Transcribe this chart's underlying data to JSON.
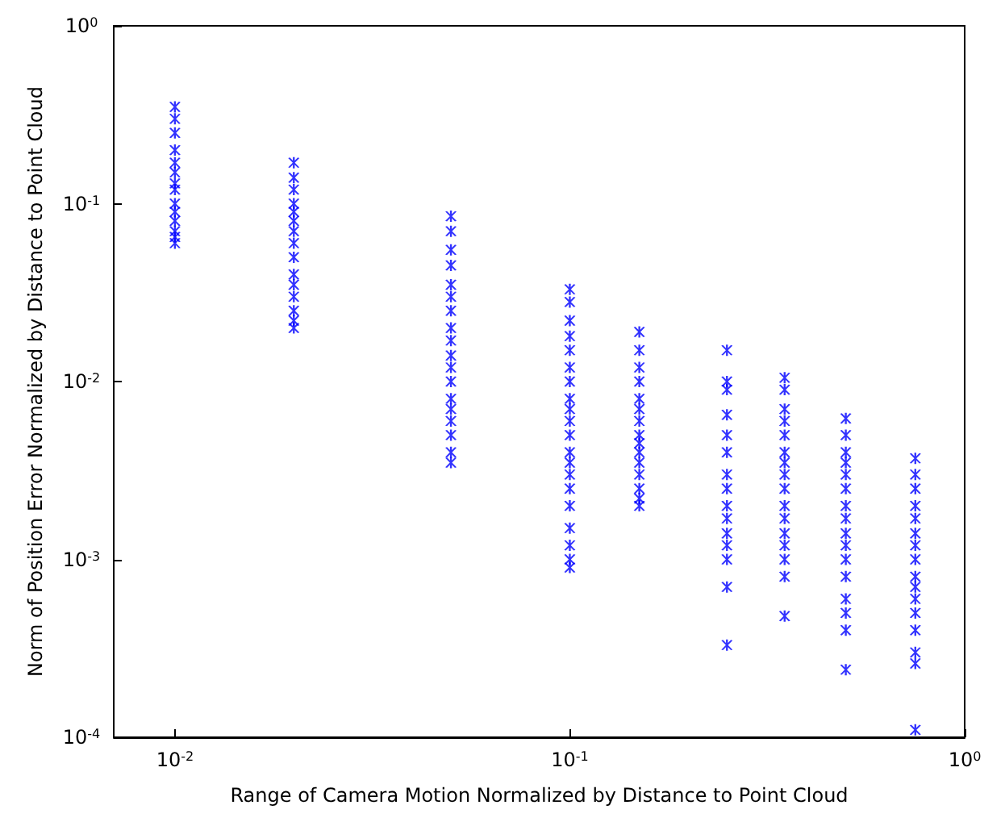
{
  "chart_data": {
    "type": "scatter",
    "xlabel": "Range of Camera Motion Normalized by Distance to Point Cloud",
    "ylabel": "Norm of Position Error Normalized by Distance to Point Cloud",
    "log": "xy",
    "marker": "cross",
    "xlim": [
      0.007,
      1
    ],
    "ylim": [
      0.0001,
      1
    ],
    "xticks": [
      {
        "value": 0.01,
        "label": "10$^{-2}$"
      },
      {
        "value": 0.1,
        "label": "10$^{-1}$"
      },
      {
        "value": 1,
        "label": "10$^{0}$"
      }
    ],
    "yticks": [
      {
        "value": 0.0001,
        "label": "10$^{-4}$"
      },
      {
        "value": 0.001,
        "label": "10$^{-3}$"
      },
      {
        "value": 0.01,
        "label": "10$^{-2}$"
      },
      {
        "value": 0.1,
        "label": "10$^{-1}$"
      },
      {
        "value": 1,
        "label": "10$^{0}$"
      }
    ],
    "series": [
      {
        "color": "#0000ff",
        "x": [
          0.01,
          0.01,
          0.01,
          0.01,
          0.01,
          0.01,
          0.01,
          0.01,
          0.01,
          0.01,
          0.01,
          0.01,
          0.01,
          0.01,
          0.02,
          0.02,
          0.02,
          0.02,
          0.02,
          0.02,
          0.02,
          0.02,
          0.02,
          0.02,
          0.02,
          0.02,
          0.02,
          0.02,
          0.02,
          0.05,
          0.05,
          0.05,
          0.05,
          0.05,
          0.05,
          0.05,
          0.05,
          0.05,
          0.05,
          0.05,
          0.05,
          0.05,
          0.05,
          0.05,
          0.05,
          0.05,
          0.05,
          0.1,
          0.1,
          0.1,
          0.1,
          0.1,
          0.1,
          0.1,
          0.1,
          0.1,
          0.1,
          0.1,
          0.1,
          0.1,
          0.1,
          0.1,
          0.1,
          0.1,
          0.1,
          0.1,
          0.1,
          0.15,
          0.15,
          0.15,
          0.15,
          0.15,
          0.15,
          0.15,
          0.15,
          0.15,
          0.15,
          0.15,
          0.15,
          0.15,
          0.15,
          0.15,
          0.25,
          0.25,
          0.25,
          0.25,
          0.25,
          0.25,
          0.25,
          0.25,
          0.25,
          0.25,
          0.25,
          0.25,
          0.25,
          0.25,
          0.25,
          0.35,
          0.35,
          0.35,
          0.35,
          0.35,
          0.35,
          0.35,
          0.35,
          0.35,
          0.35,
          0.35,
          0.35,
          0.35,
          0.35,
          0.35,
          0.35,
          0.5,
          0.5,
          0.5,
          0.5,
          0.5,
          0.5,
          0.5,
          0.5,
          0.5,
          0.5,
          0.5,
          0.5,
          0.5,
          0.5,
          0.5,
          0.5,
          0.75,
          0.75,
          0.75,
          0.75,
          0.75,
          0.75,
          0.75,
          0.75,
          0.75,
          0.75,
          0.75,
          0.75,
          0.75,
          0.75,
          0.75,
          0.75
        ],
        "values": [
          0.35,
          0.3,
          0.25,
          0.2,
          0.17,
          0.15,
          0.13,
          0.12,
          0.1,
          0.09,
          0.08,
          0.07,
          0.065,
          0.06,
          0.17,
          0.14,
          0.12,
          0.1,
          0.09,
          0.08,
          0.07,
          0.06,
          0.05,
          0.04,
          0.035,
          0.03,
          0.025,
          0.022,
          0.02,
          0.085,
          0.07,
          0.055,
          0.045,
          0.035,
          0.03,
          0.025,
          0.02,
          0.017,
          0.014,
          0.012,
          0.01,
          0.008,
          0.007,
          0.006,
          0.005,
          0.004,
          0.0035,
          0.033,
          0.028,
          0.022,
          0.018,
          0.015,
          0.012,
          0.01,
          0.008,
          0.007,
          0.006,
          0.005,
          0.004,
          0.0035,
          0.003,
          0.0025,
          0.002,
          0.0015,
          0.0012,
          0.001,
          0.0009,
          0.019,
          0.015,
          0.012,
          0.01,
          0.008,
          0.007,
          0.006,
          0.005,
          0.0045,
          0.004,
          0.0035,
          0.003,
          0.0025,
          0.0022,
          0.002,
          0.015,
          0.01,
          0.009,
          0.0065,
          0.005,
          0.004,
          0.003,
          0.0025,
          0.002,
          0.0017,
          0.0014,
          0.0012,
          0.001,
          0.0007,
          0.00033,
          0.0105,
          0.009,
          0.007,
          0.006,
          0.005,
          0.004,
          0.0035,
          0.003,
          0.0025,
          0.002,
          0.0017,
          0.0014,
          0.0012,
          0.001,
          0.0008,
          0.00048,
          0.0062,
          0.005,
          0.004,
          0.0035,
          0.003,
          0.0025,
          0.002,
          0.0017,
          0.0014,
          0.0012,
          0.001,
          0.0008,
          0.0006,
          0.0005,
          0.0004,
          0.00024,
          0.0037,
          0.003,
          0.0025,
          0.002,
          0.0017,
          0.0014,
          0.0012,
          0.001,
          0.0008,
          0.0007,
          0.0006,
          0.0005,
          0.0004,
          0.0003,
          0.00026,
          0.00011
        ]
      }
    ]
  }
}
